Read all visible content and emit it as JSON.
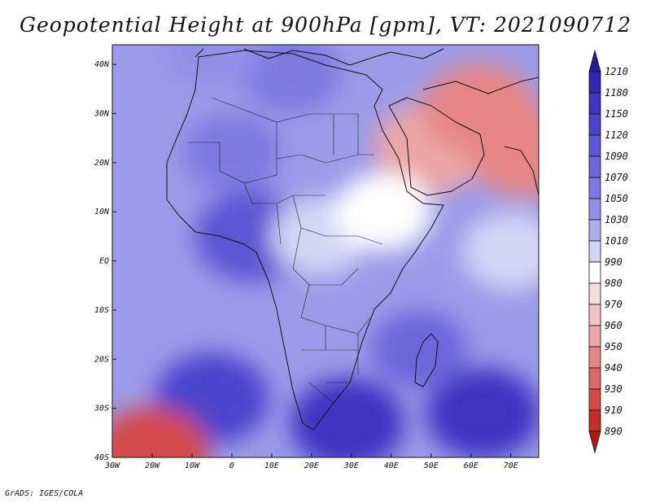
{
  "figure": {
    "title": "Geopotential Height at 900hPa [gpm], VT: 2021090712",
    "credit": "GrADS: IGES/COLA"
  },
  "map_extent": {
    "lon_range": [
      -30,
      77
    ],
    "lat_range": [
      -40,
      44
    ]
  },
  "axes": {
    "lat_ticks": [
      {
        "value": 40,
        "label": "40N"
      },
      {
        "value": 30,
        "label": "30N"
      },
      {
        "value": 20,
        "label": "20N"
      },
      {
        "value": 10,
        "label": "10N"
      },
      {
        "value": 0,
        "label": "EQ"
      },
      {
        "value": -10,
        "label": "10S"
      },
      {
        "value": -20,
        "label": "20S"
      },
      {
        "value": -30,
        "label": "30S"
      },
      {
        "value": -40,
        "label": "40S"
      }
    ],
    "lon_ticks": [
      {
        "value": -30,
        "label": "30W"
      },
      {
        "value": -20,
        "label": "20W"
      },
      {
        "value": -10,
        "label": "10W"
      },
      {
        "value": 0,
        "label": "0"
      },
      {
        "value": 10,
        "label": "10E"
      },
      {
        "value": 20,
        "label": "20E"
      },
      {
        "value": 30,
        "label": "30E"
      },
      {
        "value": 40,
        "label": "40E"
      },
      {
        "value": 50,
        "label": "50E"
      },
      {
        "value": 60,
        "label": "60E"
      },
      {
        "value": 70,
        "label": "70E"
      }
    ]
  },
  "colorbar": {
    "labels": [
      "1210",
      "1180",
      "1150",
      "1120",
      "1090",
      "1070",
      "1050",
      "1030",
      "1010",
      "990",
      "980",
      "970",
      "960",
      "950",
      "940",
      "930",
      "910",
      "890"
    ],
    "colors": [
      "#2a1a96",
      "#3226b0",
      "#3d35c2",
      "#4a44cc",
      "#5a56d4",
      "#6b68db",
      "#7c7ae1",
      "#9190e7",
      "#aeb0ee",
      "#d4d5f6",
      "#ffffff",
      "#f7dede",
      "#f2c4c4",
      "#eca6a6",
      "#e68686",
      "#de6565",
      "#d44848",
      "#c42c2c",
      "#ae1a1a"
    ],
    "colors_note": "index 0 = top arrow, last = bottom arrow"
  },
  "field_features": [
    {
      "name": "atlantic-high",
      "lon": 5,
      "lat": 5,
      "value": 1100
    },
    {
      "name": "south-atlantic",
      "lon": -5,
      "lat": -28,
      "value": 1120
    },
    {
      "name": "indian-high",
      "lon": 63,
      "lat": -31,
      "value": 1175
    },
    {
      "name": "south-africa-high",
      "lon": 29,
      "lat": -33,
      "value": 1150
    },
    {
      "name": "central-africa",
      "lon": 22,
      "lat": 5,
      "value": 1005
    },
    {
      "name": "sahara",
      "lon": 0,
      "lat": 22,
      "value": 1055
    },
    {
      "name": "arabia-low",
      "lon": 50,
      "lat": 23,
      "value": 955
    },
    {
      "name": "persia-low",
      "lon": 62,
      "lat": 31,
      "value": 945
    },
    {
      "name": "india-low",
      "lon": 74,
      "lat": 22,
      "value": 940
    },
    {
      "name": "ethiopia",
      "lon": 38,
      "lat": 10,
      "value": 985
    },
    {
      "name": "indian-ocean-eq",
      "lon": 70,
      "lat": 2,
      "value": 1005
    },
    {
      "name": "southwest-low",
      "lon": -20,
      "lat": -39,
      "value": 925
    },
    {
      "name": "mediterranean",
      "lon": 15,
      "lat": 38,
      "value": 1055
    },
    {
      "name": "iberia",
      "lon": -5,
      "lat": 43,
      "value": 1045
    },
    {
      "name": "madagascar",
      "lon": 47,
      "lat": -18,
      "value": 1080
    }
  ]
}
